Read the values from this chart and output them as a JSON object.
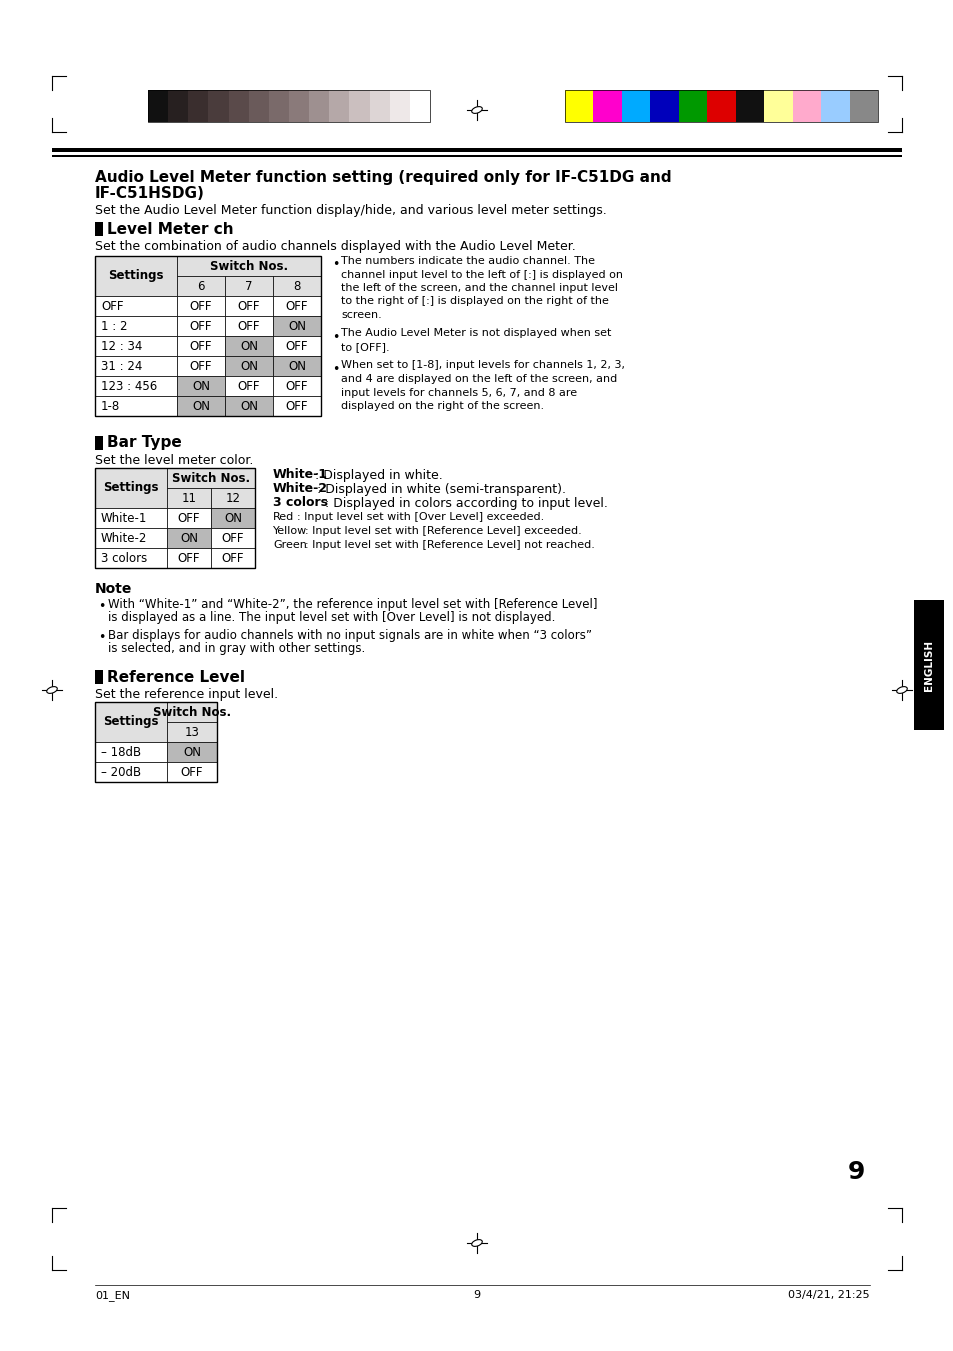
{
  "page_bg": "#ffffff",
  "header_bar_colors_bw": [
    "#111111",
    "#272020",
    "#3a2e2e",
    "#4a3c3c",
    "#5a4a4a",
    "#6a5a5a",
    "#7a6a6a",
    "#8a7a7a",
    "#9e9090",
    "#b5a8a8",
    "#cbbfbf",
    "#ddd5d5",
    "#eee8e8",
    "#ffffff"
  ],
  "color_bar_colors": [
    "#ffff00",
    "#ff00cc",
    "#00aaff",
    "#0000bb",
    "#009900",
    "#dd0000",
    "#111111",
    "#ffff99",
    "#ffaacc",
    "#99ccff",
    "#888888"
  ],
  "title_line1": "Audio Level Meter function setting (required only for IF-C51DG and",
  "title_line2": "IF-C51HSDG)",
  "subtitle": "Set the Audio Level Meter function display/hide, and various level meter settings.",
  "section1_title": "Level Meter ch",
  "section1_desc": "Set the combination of audio channels displayed with the Audio Level Meter.",
  "table1_header_col0": "Settings",
  "table1_header_group": "Switch Nos.",
  "table1_cols": [
    "6",
    "7",
    "8"
  ],
  "table1_rows": [
    [
      "OFF",
      "OFF",
      "OFF",
      "OFF"
    ],
    [
      "1 : 2",
      "OFF",
      "OFF",
      "ON"
    ],
    [
      "12 : 34",
      "OFF",
      "ON",
      "OFF"
    ],
    [
      "31 : 24",
      "OFF",
      "ON",
      "ON"
    ],
    [
      "123 : 456",
      "ON",
      "OFF",
      "OFF"
    ],
    [
      "1-8",
      "ON",
      "ON",
      "OFF"
    ]
  ],
  "table1_shaded": [
    [
      1,
      3
    ],
    [
      2,
      2
    ],
    [
      3,
      2
    ],
    [
      3,
      3
    ],
    [
      4,
      1
    ],
    [
      5,
      1
    ],
    [
      5,
      2
    ]
  ],
  "bullet1_groups": [
    [
      "The numbers indicate the audio channel. The",
      "channel input level to the left of [:] is displayed on",
      "the left of the screen, and the channel input level",
      "to the right of [:] is displayed on the right of the",
      "screen."
    ],
    [
      "The Audio Level Meter is not displayed when set",
      "to [OFF]."
    ],
    [
      "When set to [1-8], input levels for channels 1, 2, 3,",
      "and 4 are displayed on the left of the screen, and",
      "input levels for channels 5, 6, 7, and 8 are",
      "displayed on the right of the screen."
    ]
  ],
  "section2_title": "Bar Type",
  "section2_desc": "Set the level meter color.",
  "table2_header_col0": "Settings",
  "table2_header_group": "Switch Nos.",
  "table2_cols": [
    "11",
    "12"
  ],
  "table2_rows": [
    [
      "White-1",
      "OFF",
      "ON"
    ],
    [
      "White-2",
      "ON",
      "OFF"
    ],
    [
      "3 colors",
      "OFF",
      "OFF"
    ]
  ],
  "table2_shaded": [
    [
      0,
      2
    ],
    [
      1,
      1
    ]
  ],
  "right_legend_bold": [
    [
      "White-1",
      ": Displayed in white."
    ],
    [
      "White-2",
      ": Displayed in white (semi-transparent)."
    ],
    [
      "3 colors",
      ": Displayed in colors according to input level."
    ]
  ],
  "right_legend_small": [
    [
      "Red",
      ": Input level set with [Over Level] exceeded."
    ],
    [
      "Yellow",
      ": Input level set with [Reference Level] exceeded."
    ],
    [
      "Green",
      ": Input level set with [Reference Level] not reached."
    ]
  ],
  "note_title": "Note",
  "note_bullets": [
    "With “White-1” and “White-2”, the reference input level set with [Reference Level] is displayed as a line. The input level set with [Over Level] is not displayed.",
    "Bar displays for audio channels with no input signals are in white when “3 colors” is selected, and in gray with other settings."
  ],
  "section3_title": "Reference Level",
  "section3_desc": "Set the reference input level.",
  "table3_header_col0": "Settings",
  "table3_header_group": "Switch Nos.",
  "table3_cols": [
    "13"
  ],
  "table3_rows": [
    [
      "– 18dB",
      "ON"
    ],
    [
      "– 20dB",
      "OFF"
    ]
  ],
  "table3_shaded": [
    [
      0,
      1
    ]
  ],
  "page_number": "9",
  "footer_left": "01_EN",
  "footer_center": "9",
  "footer_right": "03/4/21, 21:25",
  "english_tab": "ENGLISH"
}
